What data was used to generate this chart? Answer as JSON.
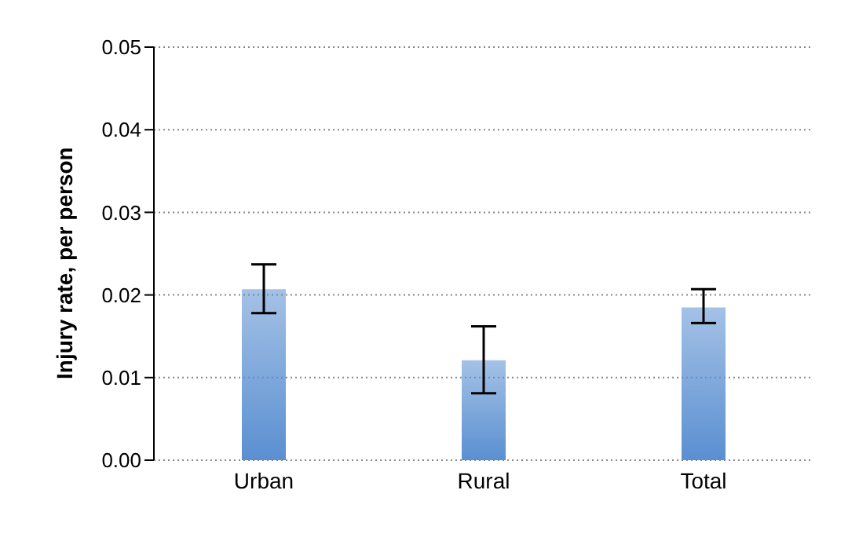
{
  "chart_data": {
    "type": "bar",
    "ylabel": "Injury rate, per person",
    "categories": [
      "Urban",
      "Rural",
      "Total"
    ],
    "values": [
      0.0207,
      0.0121,
      0.0185
    ],
    "errors": [
      [
        0.0178,
        0.0237
      ],
      [
        0.0081,
        0.0162
      ],
      [
        0.0166,
        0.0207
      ]
    ],
    "color": "#5a8fd1",
    "ylim": [
      0,
      0.05
    ],
    "yticks": [
      {
        "value": 0,
        "label": "0.00"
      },
      {
        "value": 0.01,
        "label": "0.01"
      },
      {
        "value": 0.02,
        "label": "0.02"
      },
      {
        "value": 0.03,
        "label": "0.03"
      },
      {
        "value": 0.04,
        "label": "0.04"
      },
      {
        "value": 0.05,
        "label": "0.05"
      }
    ],
    "grid": "y"
  }
}
